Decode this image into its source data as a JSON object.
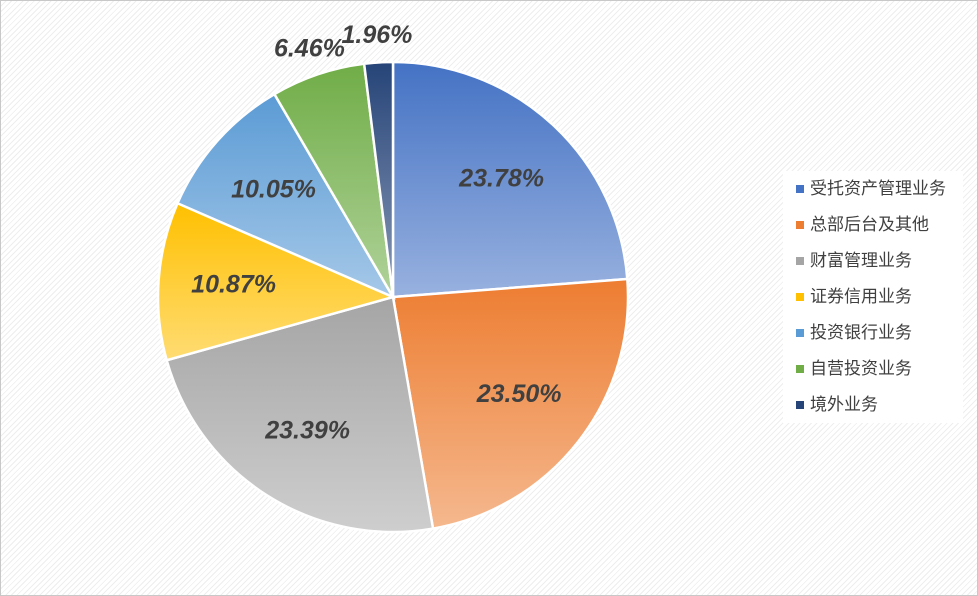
{
  "chart_data": {
    "type": "pie",
    "categories": [
      "受托资产管理业务",
      "总部后台及其他",
      "财富管理业务",
      "证券信用业务",
      "投资银行业务",
      "自营投资业务",
      "境外业务"
    ],
    "values": [
      23.78,
      23.5,
      23.39,
      10.87,
      10.05,
      6.46,
      1.96
    ],
    "value_labels": [
      "23.78%",
      "23.50%",
      "23.39%",
      "10.87%",
      "10.05%",
      "6.46%",
      "1.96%"
    ],
    "colors": [
      "#4472c4",
      "#ed7d31",
      "#a5a5a5",
      "#ffc000",
      "#5b9bd5",
      "#70ad47",
      "#264478"
    ],
    "legend": "right"
  }
}
